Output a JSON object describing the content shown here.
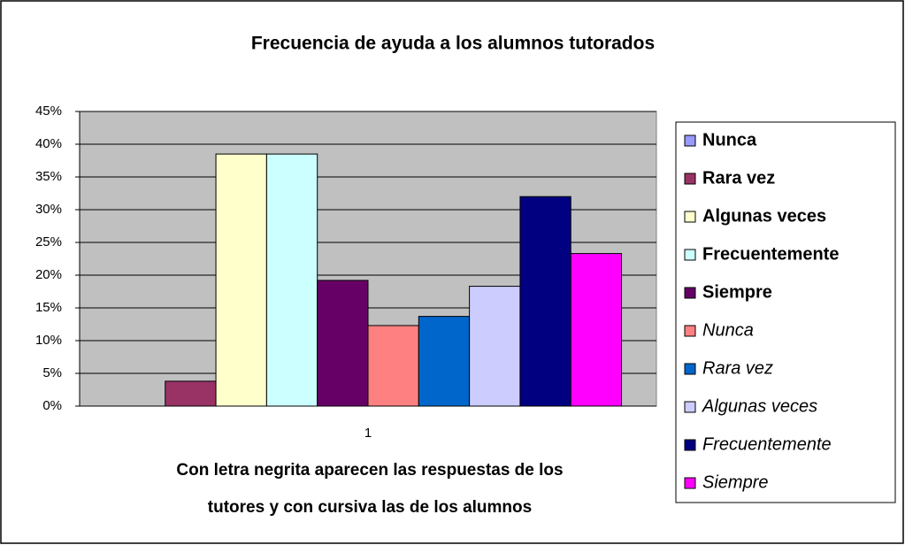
{
  "chart_data": {
    "type": "bar",
    "title": "Frecuencia de ayuda a los alumnos tutorados",
    "annotation": [
      "Con letra negrita aparecen las respuestas de los",
      "tutores y con cursiva las de los alumnos"
    ],
    "categories": [
      "1"
    ],
    "series": [
      {
        "name": "Nunca",
        "color": "#9999ff",
        "font_style": "bold",
        "values": [
          0
        ]
      },
      {
        "name": "Rara vez",
        "color": "#993366",
        "font_style": "bold",
        "values": [
          3.8
        ]
      },
      {
        "name": "Algunas veces",
        "color": "#ffffcc",
        "font_style": "bold",
        "values": [
          38.5
        ]
      },
      {
        "name": "Frecuentemente",
        "color": "#ccffff",
        "font_style": "bold",
        "values": [
          38.5
        ]
      },
      {
        "name": "Siempre",
        "color": "#660066",
        "font_style": "bold",
        "values": [
          19.2
        ]
      },
      {
        "name": "Nunca",
        "color": "#ff8080",
        "font_style": "italic",
        "values": [
          12.3
        ]
      },
      {
        "name": "Rara vez",
        "color": "#0066cc",
        "font_style": "italic",
        "values": [
          13.7
        ]
      },
      {
        "name": "Algunas veces",
        "color": "#ccccff",
        "font_style": "italic",
        "values": [
          18.3
        ]
      },
      {
        "name": "Frecuentemente",
        "color": "#000080",
        "font_style": "italic",
        "values": [
          32.0
        ]
      },
      {
        "name": "Siempre",
        "color": "#ff00ff",
        "font_style": "italic",
        "values": [
          23.3
        ]
      }
    ],
    "ylim": [
      0,
      45
    ],
    "yticks": [
      {
        "value": 0,
        "label": "0%"
      },
      {
        "value": 5,
        "label": "5%"
      },
      {
        "value": 10,
        "label": "10%"
      },
      {
        "value": 15,
        "label": "15%"
      },
      {
        "value": 20,
        "label": "20%"
      },
      {
        "value": 25,
        "label": "25%"
      },
      {
        "value": 30,
        "label": "30%"
      },
      {
        "value": 35,
        "label": "35%"
      },
      {
        "value": 40,
        "label": "40%"
      },
      {
        "value": 45,
        "label": "45%"
      }
    ],
    "grid": true,
    "legend": "right"
  }
}
